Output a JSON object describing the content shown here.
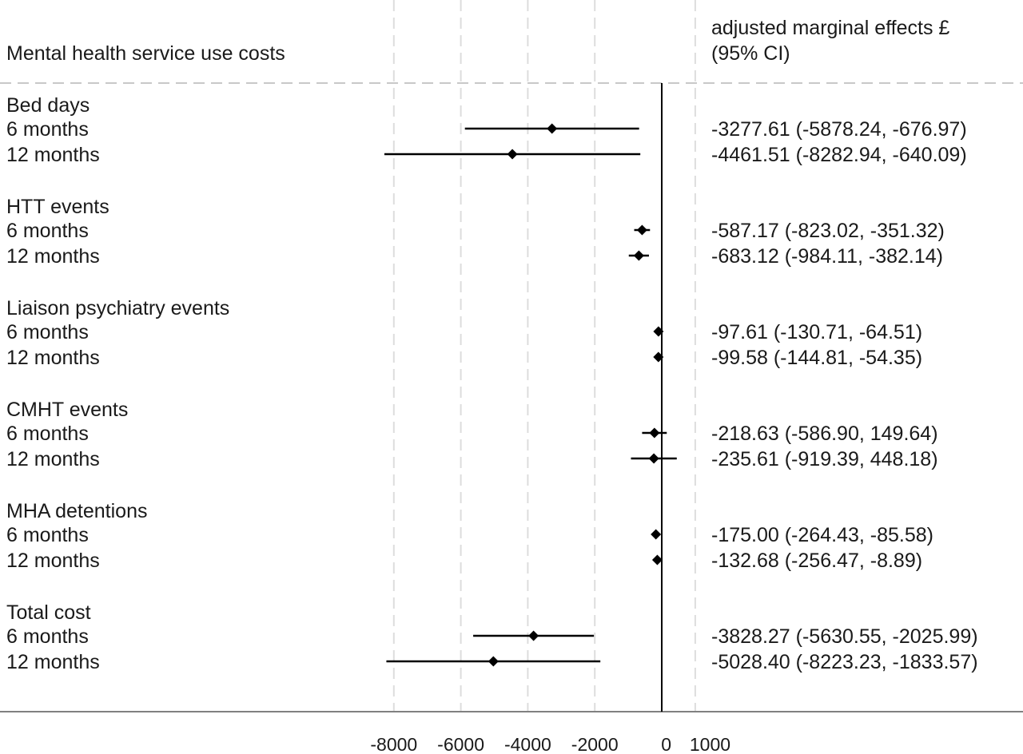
{
  "chart_data": {
    "type": "forest",
    "title": "",
    "left_header": "Mental health service use costs",
    "right_header": [
      "adjusted marginal effects £",
      "(95% CI)"
    ],
    "x_ticks": [
      -8000,
      -6000,
      -4000,
      -2000,
      0,
      1000
    ],
    "x_tick_labels": [
      "-8000",
      "-6000",
      "-4000",
      "-2000",
      "0",
      "1000"
    ],
    "xlim": [
      -8282.94,
      1000
    ],
    "reference_line": 0,
    "grid": "dashed vertical at ticks",
    "groups": [
      {
        "name": "Bed days",
        "rows": [
          {
            "label": "6 months",
            "estimate": -3277.61,
            "lower": -5878.24,
            "upper": -676.97,
            "text": "-3277.61 (-5878.24, -676.97)"
          },
          {
            "label": "12 months",
            "estimate": -4461.51,
            "lower": -8282.94,
            "upper": -640.09,
            "text": "-4461.51 (-8282.94, -640.09)"
          }
        ]
      },
      {
        "name": "HTT events",
        "rows": [
          {
            "label": "6 months",
            "estimate": -587.17,
            "lower": -823.02,
            "upper": -351.32,
            "text": "-587.17 (-823.02, -351.32)"
          },
          {
            "label": "12 months",
            "estimate": -683.12,
            "lower": -984.11,
            "upper": -382.14,
            "text": "-683.12 (-984.11, -382.14)"
          }
        ]
      },
      {
        "name": "Liaison psychiatry events",
        "rows": [
          {
            "label": "6 months",
            "estimate": -97.61,
            "lower": -130.71,
            "upper": -64.51,
            "text": "-97.61 (-130.71, -64.51)"
          },
          {
            "label": "12 months",
            "estimate": -99.58,
            "lower": -144.81,
            "upper": -54.35,
            "text": "-99.58 (-144.81, -54.35)"
          }
        ]
      },
      {
        "name": "CMHT events",
        "rows": [
          {
            "label": "6 months",
            "estimate": -218.63,
            "lower": -586.9,
            "upper": 149.64,
            "text": "-218.63 (-586.90, 149.64)"
          },
          {
            "label": "12 months",
            "estimate": -235.61,
            "lower": -919.39,
            "upper": 448.18,
            "text": "-235.61 (-919.39, 448.18)"
          }
        ]
      },
      {
        "name": "MHA detentions",
        "rows": [
          {
            "label": "6 months",
            "estimate": -175.0,
            "lower": -264.43,
            "upper": -85.58,
            "text": "-175.00 (-264.43, -85.58)"
          },
          {
            "label": "12 months",
            "estimate": -132.68,
            "lower": -256.47,
            "upper": -8.89,
            "text": "-132.68 (-256.47, -8.89)"
          }
        ]
      },
      {
        "name": "Total cost",
        "rows": [
          {
            "label": "6 months",
            "estimate": -3828.27,
            "lower": -5630.55,
            "upper": -2025.99,
            "text": "-3828.27 (-5630.55, -2025.99)"
          },
          {
            "label": "12 months",
            "estimate": -5028.4,
            "lower": -8223.23,
            "upper": -1833.57,
            "text": "-5028.40 (-8223.23, -1833.57)"
          }
        ]
      }
    ],
    "colors": {
      "marker": "#000000",
      "grid": "#dddddd",
      "axis": "#808080",
      "ref_line": "#000000"
    }
  }
}
